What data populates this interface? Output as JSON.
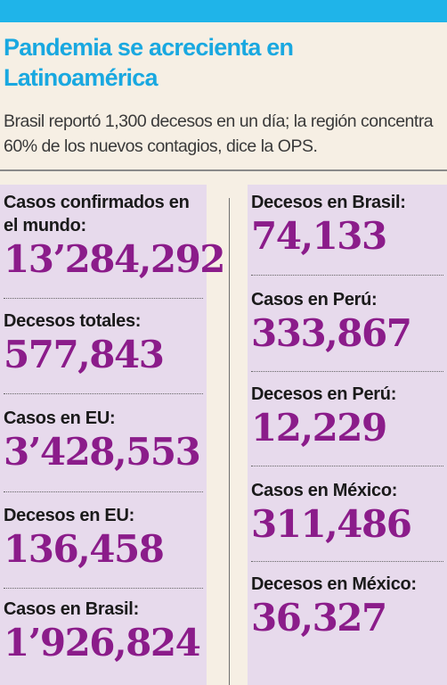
{
  "headline": "Pandemia se acrecienta en Latinoamérica",
  "deck": "Brasil reportó 1,300 decesos en un día; la región concentra 60% de los nuevos contagios, dice la OPS.",
  "colors": {
    "top_bar": "#1fb4e9",
    "headline": "#19a8e0",
    "panel": "#e7daec",
    "number": "#8b1c8a",
    "background": "#f6efe4"
  },
  "left_column": [
    {
      "label": "Casos confirmados en el mundo:",
      "value": "13’284,292"
    },
    {
      "label": "Decesos totales:",
      "value": "577,843"
    },
    {
      "label": "Casos en EU:",
      "value": "3’428,553"
    },
    {
      "label": "Decesos en EU:",
      "value": "136,458"
    },
    {
      "label": "Casos en Brasil:",
      "value": "1’926,824"
    }
  ],
  "right_column": [
    {
      "label": "Decesos en Brasil:",
      "value": "74,133"
    },
    {
      "label": "Casos en Perú:",
      "value": "333,867"
    },
    {
      "label": "Decesos en Perú:",
      "value": "12,229"
    },
    {
      "label": "Casos en México:",
      "value": "311,486"
    },
    {
      "label": "Decesos en México:",
      "value": "36,327"
    }
  ]
}
